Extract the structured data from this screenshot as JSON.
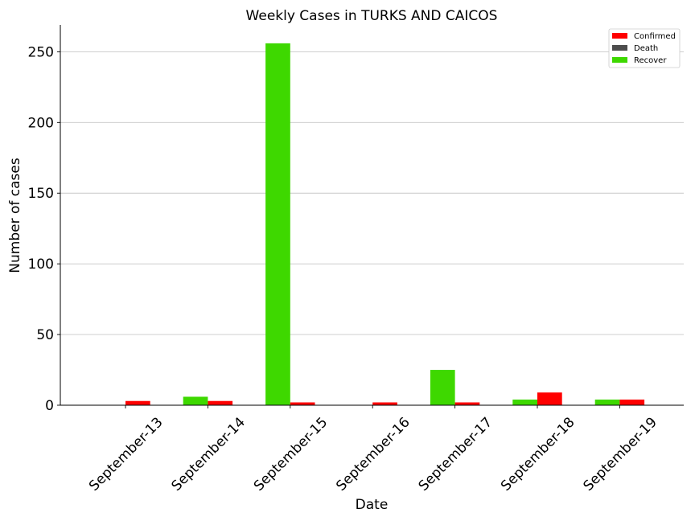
{
  "chart_data": {
    "type": "bar",
    "title": "Weekly Cases in TURKS AND CAICOS",
    "xlabel": "Date",
    "ylabel": "Number of cases",
    "categories": [
      "September-13",
      "September-14",
      "September-15",
      "September-16",
      "September-17",
      "September-18",
      "September-19"
    ],
    "series": [
      {
        "name": "Recover",
        "color": "#3ed800",
        "values": [
          0,
          6,
          256,
          0,
          25,
          4,
          4
        ]
      },
      {
        "name": "Confirmed",
        "color": "#ff0000",
        "values": [
          3,
          3,
          2,
          2,
          2,
          9,
          4
        ]
      },
      {
        "name": "Death",
        "color": "#4d4d4d",
        "values": [
          0,
          0,
          0,
          0,
          0,
          0,
          0
        ]
      }
    ],
    "legend_order": [
      "Confirmed",
      "Death",
      "Recover"
    ],
    "ylim": [
      0,
      269
    ],
    "yticks": [
      0,
      50,
      100,
      150,
      200,
      250
    ],
    "grid": "y",
    "legend_position": "top-right"
  }
}
